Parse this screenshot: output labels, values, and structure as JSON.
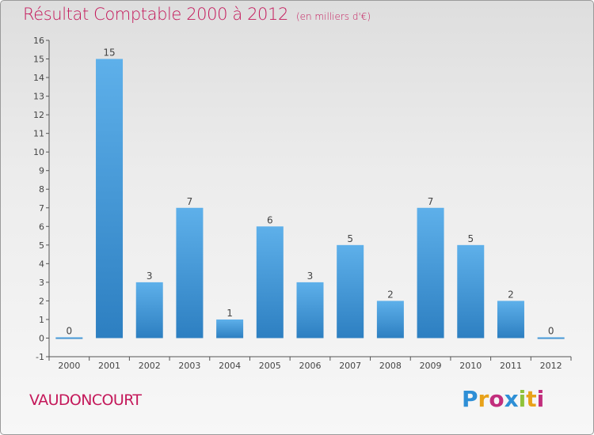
{
  "header": {
    "title": "Résultat Comptable 2000 à 2012",
    "subtitle": "(en milliers d'€)"
  },
  "commune": "VAUDONCOURT",
  "brand": {
    "letters": [
      "P",
      "r",
      "o",
      "x",
      "i",
      "t",
      "i"
    ],
    "colors": [
      "#2e8fd6",
      "#e8a21a",
      "#c22e7d",
      "#2e8fd6",
      "#8fc23a",
      "#e8a21a",
      "#c22e7d"
    ]
  },
  "colors": {
    "bar_top": "#5eb0ea",
    "bar_bottom": "#2d7fc1",
    "axis": "#555555",
    "label": "#444444"
  },
  "chart_data": {
    "type": "bar",
    "title": "Résultat Comptable 2000 à 2012",
    "xlabel": "",
    "ylabel": "en milliers d'€",
    "categories": [
      "2000",
      "2001",
      "2002",
      "2003",
      "2004",
      "2005",
      "2006",
      "2007",
      "2008",
      "2009",
      "2010",
      "2011",
      "2012"
    ],
    "values": [
      0,
      15,
      3,
      7,
      1,
      6,
      3,
      5,
      2,
      7,
      5,
      2,
      0
    ],
    "ylim": [
      -1,
      16
    ],
    "yticks": [
      -1,
      0,
      1,
      2,
      3,
      4,
      5,
      6,
      7,
      8,
      9,
      10,
      11,
      12,
      13,
      14,
      15,
      16
    ],
    "grid": false
  }
}
